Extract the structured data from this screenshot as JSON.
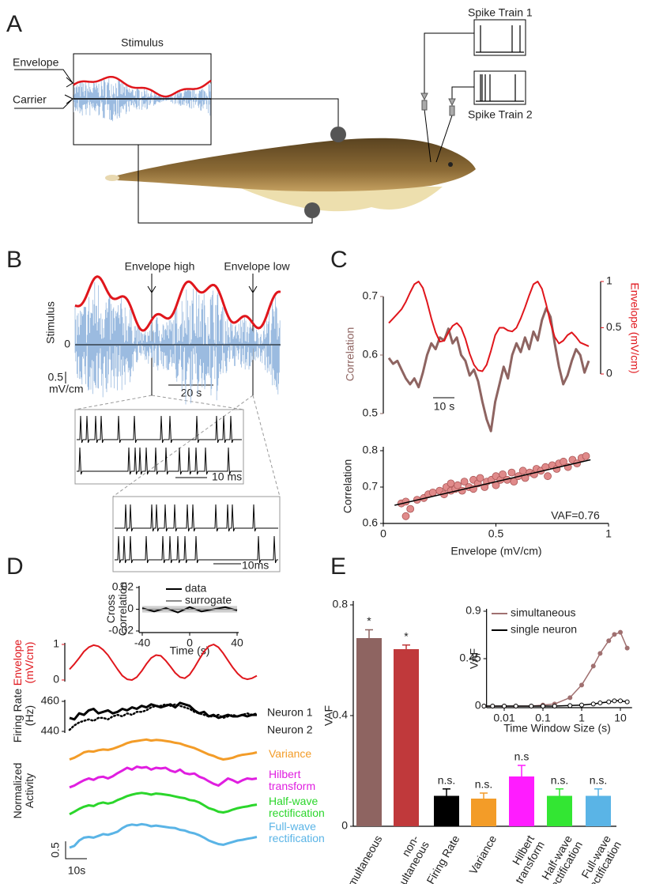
{
  "figure": {
    "panel_labels": [
      "A",
      "B",
      "C",
      "D",
      "E"
    ],
    "panel_a": {
      "stimulus": "Stimulus",
      "envelope": "Envelope",
      "carrier": "Carrier",
      "spike_train_1": "Spike Train 1",
      "spike_train_2": "Spike Train 2"
    },
    "panel_b": {
      "envelope_high": "Envelope high",
      "envelope_low": "Envelope low",
      "stimulus": "Stimulus",
      "zero": "0",
      "scale_value": "0.5",
      "scale_unit": "mV/cm",
      "time_scale": "20 s",
      "zoom_scale_1": "10 ms",
      "zoom_scale_2": "10ms"
    },
    "panel_c": {
      "time_scale": "10 s"
    },
    "panel_d": {
      "scale": "0.5",
      "time_scale": "10s"
    }
  },
  "chart_data": [
    {
      "type": "line",
      "ylabel": "Correlation",
      "y2label": "Envelope (mV/cm)",
      "ylim": [
        0.5,
        0.7
      ],
      "yticks": [
        0.5,
        0.6,
        0.7
      ],
      "y2lim": [
        0,
        1
      ],
      "y2ticks": [
        0,
        0.5,
        1
      ],
      "series": [
        {
          "color": "#8e6461",
          "values": [
            0.595,
            0.585,
            0.59,
            0.575,
            0.56,
            0.55,
            0.56,
            0.545,
            0.57,
            0.6,
            0.62,
            0.61,
            0.63,
            0.625,
            0.645,
            0.62,
            0.63,
            0.6,
            0.59,
            0.565,
            0.575,
            0.555,
            0.52,
            0.49,
            0.47,
            0.52,
            0.55,
            0.58,
            0.56,
            0.6,
            0.62,
            0.605,
            0.63,
            0.61,
            0.64,
            0.625,
            0.66,
            0.68,
            0.665,
            0.62,
            0.58,
            0.55,
            0.565,
            0.59,
            0.61,
            0.6,
            0.57,
            0.59
          ]
        },
        {
          "color": "#e0161c",
          "axis": "y2",
          "values": [
            0.55,
            0.6,
            0.65,
            0.7,
            0.78,
            0.88,
            0.97,
            1.0,
            0.93,
            0.78,
            0.6,
            0.45,
            0.35,
            0.36,
            0.45,
            0.52,
            0.55,
            0.5,
            0.38,
            0.22,
            0.1,
            0.04,
            0.03,
            0.1,
            0.25,
            0.42,
            0.5,
            0.5,
            0.47,
            0.46,
            0.5,
            0.6,
            0.72,
            0.85,
            0.97,
            1.0,
            0.92,
            0.75,
            0.55,
            0.4,
            0.33,
            0.36,
            0.42,
            0.45,
            0.4,
            0.34,
            0.32,
            0.3
          ]
        }
      ]
    },
    {
      "type": "scatter",
      "xlabel": "Envelope (mV/cm)",
      "ylabel": "Correlation",
      "annotation": "VAF=0.76",
      "xlim": [
        0,
        1
      ],
      "ylim": [
        0.6,
        0.8
      ],
      "xticks": [
        0,
        0.5,
        1
      ],
      "yticks": [
        0.6,
        0.7,
        0.8
      ],
      "color": "#e08a8a",
      "x": [
        0.08,
        0.1,
        0.12,
        0.1,
        0.15,
        0.18,
        0.2,
        0.22,
        0.25,
        0.27,
        0.28,
        0.3,
        0.3,
        0.32,
        0.33,
        0.35,
        0.36,
        0.38,
        0.4,
        0.4,
        0.42,
        0.43,
        0.45,
        0.46,
        0.48,
        0.5,
        0.5,
        0.52,
        0.53,
        0.55,
        0.57,
        0.58,
        0.6,
        0.62,
        0.63,
        0.65,
        0.67,
        0.68,
        0.7,
        0.72,
        0.73,
        0.75,
        0.77,
        0.78,
        0.8,
        0.82,
        0.84,
        0.86,
        0.88,
        0.9
      ],
      "y": [
        0.655,
        0.62,
        0.64,
        0.66,
        0.665,
        0.67,
        0.68,
        0.685,
        0.69,
        0.68,
        0.7,
        0.69,
        0.71,
        0.695,
        0.705,
        0.69,
        0.715,
        0.7,
        0.72,
        0.695,
        0.71,
        0.725,
        0.7,
        0.715,
        0.72,
        0.73,
        0.705,
        0.72,
        0.735,
        0.72,
        0.74,
        0.715,
        0.73,
        0.745,
        0.725,
        0.74,
        0.735,
        0.75,
        0.745,
        0.755,
        0.73,
        0.76,
        0.75,
        0.765,
        0.77,
        0.755,
        0.775,
        0.765,
        0.78,
        0.785
      ],
      "fit": {
        "x": [
          0.05,
          0.92
        ],
        "y": [
          0.65,
          0.775
        ],
        "color": "#000000"
      }
    },
    {
      "type": "line",
      "xlabel": "Time (s)",
      "ylabel": "Cross Correlation",
      "x": [
        -40,
        -30,
        -20,
        -10,
        0,
        10,
        20,
        30,
        40
      ],
      "xlim": [
        -40,
        40
      ],
      "xticks": [
        -40,
        0,
        40
      ],
      "ylim": [
        -0.02,
        0.02
      ],
      "yticks": [
        -0.02,
        0,
        0.02
      ],
      "series": [
        {
          "name": "data",
          "color": "#000000",
          "values": [
            0.001,
            -0.002,
            0.001,
            -0.003,
            0.002,
            -0.002,
            0,
            0.002,
            -0.001
          ]
        },
        {
          "name": "surrogate",
          "color": "#8a8a8a",
          "values": [
            0,
            0,
            0,
            0,
            0,
            0,
            0,
            0,
            0
          ]
        }
      ]
    },
    {
      "type": "line",
      "ylabel": "Envelope (mV/cm)",
      "ylim": [
        0,
        1
      ],
      "yticks": [
        0,
        1
      ],
      "series": [
        {
          "color": "#e0161c",
          "values": [
            0.3,
            0.45,
            0.62,
            0.8,
            0.92,
            0.98,
            0.95,
            0.85,
            0.7,
            0.5,
            0.3,
            0.12,
            0.02,
            0.0,
            0.08,
            0.25,
            0.45,
            0.62,
            0.7,
            0.68,
            0.55,
            0.38,
            0.2,
            0.08,
            0.05,
            0.15,
            0.35,
            0.58,
            0.8,
            0.95,
            1.0,
            0.92,
            0.75,
            0.55,
            0.35,
            0.18,
            0.06,
            0.02,
            0.05,
            0.12
          ]
        }
      ]
    },
    {
      "type": "line",
      "ylabel": "Firing Rate (Hz)",
      "ylim": [
        440,
        460
      ],
      "yticks": [
        440,
        460
      ],
      "series": [
        {
          "name": "Neuron 1",
          "color": "#000000",
          "values": [
            449,
            448,
            452,
            451,
            454,
            455,
            452,
            453,
            454,
            452,
            453,
            455,
            454,
            456,
            455,
            457,
            456,
            458,
            457,
            456,
            457,
            458,
            456,
            459,
            458,
            457,
            454,
            452,
            453,
            450,
            451,
            449,
            450,
            451,
            450,
            450,
            451,
            450,
            451,
            451
          ]
        },
        {
          "name": "Neuron 2",
          "color": "#000000",
          "dash": true,
          "values": [
            441,
            444,
            446,
            447,
            448,
            447,
            449,
            449,
            448,
            450,
            451,
            450,
            452,
            451,
            453,
            453,
            454,
            456,
            457,
            457,
            458,
            457,
            458,
            457,
            456,
            455,
            453,
            452,
            451,
            450,
            450,
            451,
            449,
            450,
            451,
            450,
            451,
            452,
            451,
            452
          ]
        }
      ]
    },
    {
      "type": "line",
      "ylabel": "Normalized Activity",
      "series": [
        {
          "name": "Variance",
          "color": "#f39c28",
          "values": [
            0.1,
            0.15,
            0.22,
            0.3,
            0.33,
            0.32,
            0.36,
            0.38,
            0.37,
            0.4,
            0.45,
            0.5,
            0.56,
            0.6,
            0.62,
            0.64,
            0.66,
            0.63,
            0.65,
            0.64,
            0.62,
            0.6,
            0.57,
            0.55,
            0.5,
            0.46,
            0.42,
            0.36,
            0.3,
            0.24,
            0.2,
            0.14,
            0.1,
            0.12,
            0.15,
            0.2,
            0.23,
            0.25,
            0.27,
            0.3
          ]
        },
        {
          "name": "Hilbert transform",
          "color": "#e01ee0",
          "values": [
            0.05,
            0.1,
            0.18,
            0.25,
            0.3,
            0.26,
            0.33,
            0.35,
            0.3,
            0.36,
            0.45,
            0.52,
            0.6,
            0.55,
            0.63,
            0.6,
            0.62,
            0.55,
            0.6,
            0.58,
            0.6,
            0.52,
            0.48,
            0.55,
            0.45,
            0.42,
            0.44,
            0.35,
            0.3,
            0.22,
            0.15,
            0.1,
            0.2,
            0.3,
            0.25,
            0.18,
            0.25,
            0.3,
            0.28,
            0.3
          ]
        },
        {
          "name": "Half-wave rectification",
          "color": "#2bd62b",
          "values": [
            0.05,
            0.12,
            0.2,
            0.26,
            0.3,
            0.28,
            0.35,
            0.38,
            0.35,
            0.38,
            0.45,
            0.5,
            0.56,
            0.6,
            0.63,
            0.65,
            0.63,
            0.6,
            0.63,
            0.62,
            0.6,
            0.58,
            0.55,
            0.52,
            0.5,
            0.45,
            0.43,
            0.38,
            0.3,
            0.22,
            0.18,
            0.12,
            0.1,
            0.13,
            0.18,
            0.22,
            0.25,
            0.27,
            0.3,
            0.32
          ]
        },
        {
          "name": "Full-wave rectification",
          "color": "#5ab4e6",
          "values": [
            0.0,
            0.05,
            0.2,
            0.28,
            0.3,
            0.28,
            0.33,
            0.38,
            0.36,
            0.4,
            0.45,
            0.55,
            0.62,
            0.65,
            0.63,
            0.66,
            0.64,
            0.6,
            0.62,
            0.6,
            0.58,
            0.56,
            0.55,
            0.5,
            0.48,
            0.43,
            0.4,
            0.35,
            0.28,
            0.2,
            0.15,
            0.1,
            0.08,
            0.12,
            0.16,
            0.2,
            0.22,
            0.25,
            0.27,
            0.3
          ]
        }
      ]
    },
    {
      "type": "bar",
      "ylabel": "VAF",
      "ylim": [
        0,
        0.8
      ],
      "yticks": [
        0,
        0.4,
        0.8
      ],
      "categories": [
        "simultaneous",
        "non-simultaneous",
        "Firing Rate",
        "Variance",
        "Hilbert transform",
        "Half-wave rectification",
        "Full-wave rectification"
      ],
      "values": [
        0.68,
        0.64,
        0.11,
        0.1,
        0.18,
        0.11,
        0.11
      ],
      "errors": [
        0.03,
        0.015,
        0.025,
        0.02,
        0.04,
        0.025,
        0.025
      ],
      "colors": [
        "#8e6461",
        "#c0393b",
        "#000000",
        "#f39c28",
        "#ff1cff",
        "#33e633",
        "#5ab4e6"
      ],
      "annotations": [
        "*",
        "*",
        "n.s.",
        "n.s.",
        "n.s",
        "n.s.",
        "n.s."
      ]
    },
    {
      "type": "line",
      "log_x": true,
      "xlabel": "Time Window Size (s)",
      "ylabel": "VAF",
      "x": [
        0.003,
        0.005,
        0.01,
        0.02,
        0.05,
        0.1,
        0.2,
        0.5,
        1,
        2,
        3,
        5,
        7,
        10,
        15
      ],
      "xlim": [
        0.0035,
        20
      ],
      "xticks": [
        0.01,
        0.1,
        1,
        10
      ],
      "ylim": [
        0,
        0.9
      ],
      "yticks": [
        0,
        0.45,
        0.9
      ],
      "series": [
        {
          "name": "simultaneous",
          "color": "#a07070",
          "values": [
            0,
            0,
            0,
            0,
            0,
            0.01,
            0.02,
            0.08,
            0.2,
            0.38,
            0.5,
            0.62,
            0.68,
            0.7,
            0.55
          ]
        },
        {
          "name": "single neuron",
          "color": "#000000",
          "values": [
            0,
            0,
            0,
            0,
            0,
            0,
            0,
            0.005,
            0.01,
            0.02,
            0.03,
            0.04,
            0.05,
            0.05,
            0.04
          ]
        }
      ]
    }
  ]
}
